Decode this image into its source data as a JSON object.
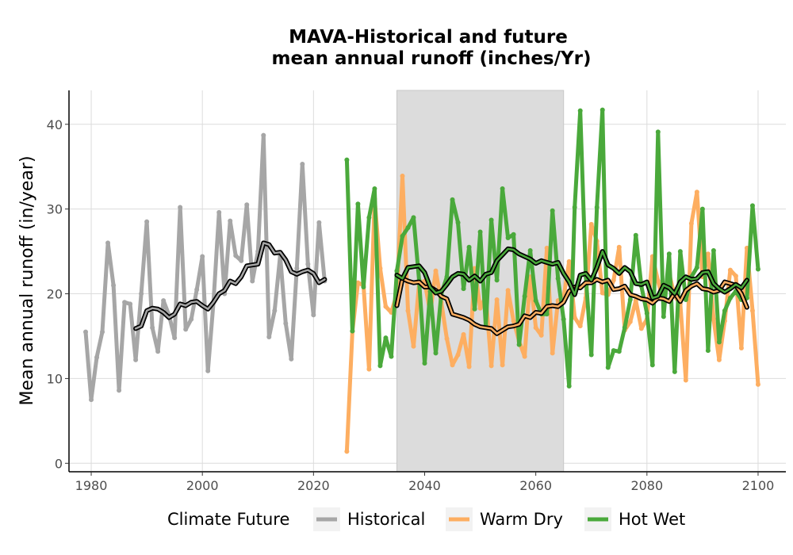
{
  "chart_data": {
    "type": "line",
    "title": "MAVA-Historical and future",
    "subtitle": "mean annual runoff (inches/Yr)",
    "xlabel": "",
    "ylabel": "Mean annual runoff (in/year)",
    "xlim": [
      1976,
      2105
    ],
    "ylim": [
      -1,
      44
    ],
    "xticks": [
      1980,
      2000,
      2020,
      2040,
      2060,
      2080,
      2100
    ],
    "yticks": [
      0,
      10,
      20,
      30,
      40
    ],
    "grid": true,
    "shaded_period": [
      2035,
      2065
    ],
    "legend": {
      "title": "Climate Future",
      "position": "bottom",
      "items": [
        "Historical",
        "Warm Dry",
        "Hot Wet"
      ]
    },
    "colors": {
      "Historical": "#a6a6a6",
      "Warm Dry": "#fdae61",
      "Hot Wet": "#4aa93b",
      "Smoothed": "#000000",
      "Shade": "#dcdcdc"
    },
    "series": [
      {
        "name": "Historical",
        "x_start": 1979,
        "values": [
          15.5,
          7.5,
          12.5,
          15.5,
          26.0,
          21.0,
          8.6,
          19.0,
          18.8,
          12.2,
          20.0,
          28.5,
          16.0,
          13.2,
          19.2,
          17.5,
          14.8,
          30.2,
          15.8,
          17.0,
          20.5,
          24.4,
          10.9,
          19.0,
          29.6,
          20.0,
          28.6,
          24.5,
          23.9,
          30.5,
          21.5,
          25.0,
          38.7,
          14.9,
          18.0,
          24.5,
          16.5,
          12.3,
          23.0,
          35.3,
          23.5,
          17.5,
          28.4,
          21.5
        ]
      },
      {
        "name": "Historical (smoothed)",
        "x_start": 1988,
        "values": [
          15.9,
          16.2,
          18.0,
          18.3,
          18.2,
          17.8,
          17.2,
          17.6,
          18.8,
          18.6,
          19.0,
          19.1,
          18.6,
          18.2,
          19.0,
          20.0,
          20.4,
          21.5,
          21.2,
          22.0,
          23.3,
          23.4,
          23.5,
          26.0,
          25.8,
          24.8,
          24.9,
          24.0,
          22.6,
          22.3,
          22.6,
          22.8,
          22.4,
          21.3,
          21.7
        ]
      },
      {
        "name": "Warm Dry",
        "x_start": 2026,
        "values": [
          1.4,
          15.6,
          21.3,
          21.0,
          11.1,
          31.2,
          23.0,
          18.5,
          17.8,
          20.0,
          33.9,
          18.0,
          13.8,
          21.2,
          21.5,
          17.7,
          22.7,
          19.0,
          14.7,
          11.6,
          12.8,
          15.2,
          11.4,
          23.0,
          18.3,
          19.7,
          11.5,
          19.3,
          11.6,
          20.4,
          16.8,
          14.4,
          12.6,
          22.0,
          16.0,
          15.1,
          25.4,
          13.0,
          19.2,
          19.5,
          23.8,
          17.2,
          16.2,
          19.5,
          28.2,
          26.2,
          20.1,
          19.9,
          21.6,
          25.5,
          15.7,
          16.7,
          19.2,
          15.9,
          17.0,
          24.4,
          21.5,
          19.0,
          22.4,
          19.7,
          18.8,
          9.8,
          28.3,
          32.0,
          22.0,
          24.7,
          17.0,
          12.2,
          16.8,
          22.8,
          22.1,
          13.6,
          25.4,
          18.0,
          9.3
        ]
      },
      {
        "name": "Warm Dry (smoothed)",
        "x_start": 2035,
        "values": [
          18.6,
          21.8,
          21.5,
          21.3,
          21.4,
          20.8,
          20.8,
          20.4,
          19.7,
          19.4,
          17.6,
          17.4,
          17.2,
          16.9,
          16.4,
          16.1,
          16.0,
          15.9,
          15.3,
          15.7,
          16.1,
          16.2,
          16.4,
          17.4,
          17.2,
          17.8,
          17.7,
          18.5,
          18.6,
          18.5,
          19.0,
          20.3,
          20.8,
          20.7,
          21.3,
          21.3,
          21.7,
          21.4,
          21.6,
          20.5,
          20.6,
          20.9,
          19.9,
          19.7,
          19.4,
          19.3,
          18.9,
          19.5,
          19.4,
          19.1,
          20.1,
          19.1,
          20.4,
          20.9,
          21.2,
          20.6,
          20.5,
          20.2,
          20.4,
          21.4,
          21.2,
          21.0,
          20.0,
          18.4
        ]
      },
      {
        "name": "Hot Wet",
        "x_start": 2026,
        "values": [
          35.8,
          15.6,
          30.6,
          20.8,
          29.0,
          32.4,
          11.5,
          14.8,
          12.6,
          22.7,
          26.8,
          27.8,
          29.0,
          21.6,
          11.8,
          20.3,
          13.0,
          20.0,
          22.0,
          31.1,
          28.4,
          20.6,
          25.5,
          18.2,
          27.3,
          16.2,
          28.7,
          21.6,
          32.4,
          26.6,
          27.0,
          14.0,
          19.7,
          25.1,
          19.2,
          17.6,
          17.6,
          29.8,
          21.8,
          17.0,
          9.1,
          30.2,
          41.6,
          22.1,
          12.8,
          30.2,
          41.7,
          11.3,
          13.3,
          13.2,
          16.0,
          19.3,
          26.9,
          20.9,
          17.7,
          11.6,
          39.1,
          17.3,
          24.7,
          10.8,
          25.0,
          19.3,
          22.0,
          23.1,
          30.0,
          13.3,
          25.1,
          14.3,
          18.0,
          19.5,
          20.3,
          19.3,
          19.5,
          30.4,
          22.9
        ]
      },
      {
        "name": "Hot Wet (smoothed)",
        "x_start": 2035,
        "values": [
          22.2,
          21.8,
          23.1,
          23.2,
          23.3,
          22.5,
          20.8,
          20.1,
          20.3,
          21.1,
          22.0,
          22.4,
          22.3,
          21.6,
          22.1,
          21.5,
          22.3,
          22.5,
          23.9,
          24.6,
          25.3,
          25.2,
          24.7,
          24.4,
          24.1,
          23.6,
          23.9,
          23.7,
          23.5,
          23.7,
          22.4,
          21.4,
          19.9,
          22.2,
          22.4,
          21.6,
          23.1,
          25.0,
          23.4,
          23.0,
          22.4,
          23.1,
          22.6,
          21.2,
          21.1,
          21.4,
          19.5,
          19.7,
          21.0,
          20.7,
          20.0,
          21.4,
          22.0,
          21.7,
          21.8,
          22.5,
          22.6,
          21.2,
          20.6,
          20.2,
          20.6,
          21.1,
          20.7,
          21.6
        ]
      }
    ]
  }
}
